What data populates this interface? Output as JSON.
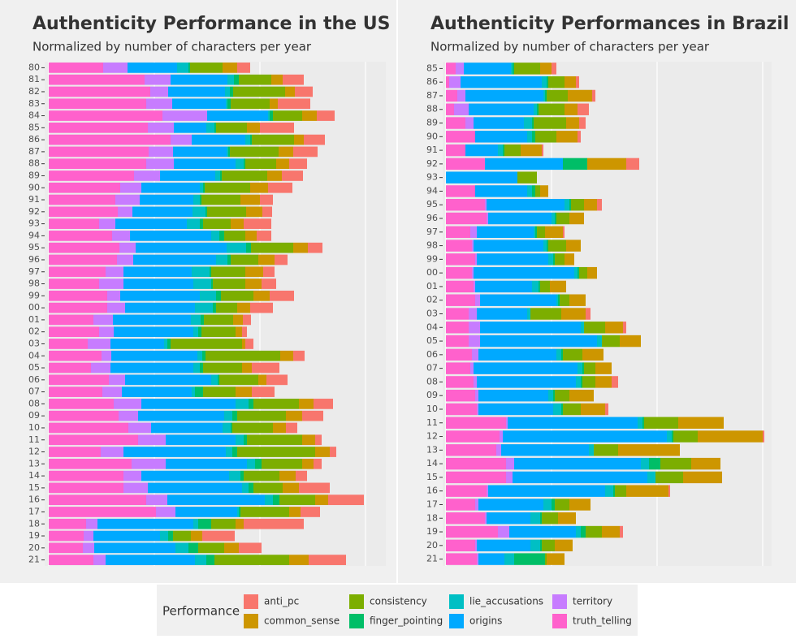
{
  "chart_data": [
    {
      "type": "bar",
      "orientation": "horizontal",
      "stacked": true,
      "title": "Authenticity Performance in the US",
      "subtitle": "Normalized by number of characters per year",
      "categories": [
        "80",
        "81",
        "82",
        "83",
        "84",
        "85",
        "86",
        "87",
        "88",
        "89",
        "90",
        "91",
        "92",
        "93",
        "94",
        "95",
        "96",
        "97",
        "98",
        "99",
        "00",
        "01",
        "02",
        "03",
        "04",
        "05",
        "06",
        "07",
        "08",
        "09",
        "10",
        "11",
        "12",
        "13",
        "14",
        "15",
        "16",
        "17",
        "18",
        "19",
        "20",
        "21"
      ],
      "xlim": [
        -5,
        415
      ],
      "xticks": [
        0,
        130,
        260,
        390
      ],
      "grid": true,
      "series": [
        {
          "name": "truth_telling",
          "color": "#FF61CC",
          "values": [
            67,
            118,
            125,
            120,
            140,
            122,
            150,
            123,
            120,
            105,
            88,
            82,
            85,
            62,
            78,
            87,
            84,
            70,
            62,
            72,
            72,
            55,
            62,
            48,
            65,
            52,
            74,
            66,
            80,
            86,
            98,
            110,
            64,
            102,
            92,
            92,
            120,
            132,
            46,
            43,
            42,
            55
          ]
        },
        {
          "name": "territory",
          "color": "#C77CFF",
          "values": [
            30,
            32,
            22,
            32,
            55,
            32,
            26,
            30,
            34,
            32,
            26,
            30,
            18,
            20,
            22,
            20,
            20,
            22,
            30,
            16,
            22,
            24,
            18,
            28,
            12,
            24,
            20,
            24,
            34,
            24,
            28,
            34,
            28,
            42,
            22,
            30,
            26,
            24,
            14,
            12,
            14,
            15
          ]
        },
        {
          "name": "origins",
          "color": "#00A9FF",
          "values": [
            61,
            70,
            70,
            66,
            75,
            40,
            66,
            66,
            76,
            68,
            72,
            66,
            74,
            88,
            100,
            112,
            102,
            84,
            86,
            98,
            86,
            96,
            98,
            66,
            106,
            102,
            106,
            86,
            116,
            106,
            88,
            86,
            126,
            100,
            108,
            116,
            120,
            76,
            118,
            82,
            100,
            110
          ]
        },
        {
          "name": "lie_accusations",
          "color": "#00BFC4",
          "values": [
            14,
            8,
            6,
            2,
            2,
            10,
            6,
            2,
            10,
            6,
            4,
            8,
            16,
            16,
            10,
            24,
            14,
            22,
            22,
            20,
            22,
            12,
            6,
            4,
            6,
            8,
            8,
            4,
            16,
            10,
            10,
            10,
            8,
            10,
            14,
            8,
            10,
            2,
            6,
            10,
            16,
            14
          ]
        },
        {
          "name": "finger_pointing",
          "color": "#00BE67",
          "values": [
            2,
            6,
            4,
            4,
            4,
            2,
            2,
            2,
            2,
            2,
            2,
            2,
            2,
            4,
            6,
            6,
            4,
            2,
            2,
            6,
            4,
            4,
            4,
            4,
            4,
            4,
            2,
            10,
            6,
            6,
            2,
            4,
            6,
            8,
            4,
            6,
            8,
            2,
            16,
            6,
            12,
            10
          ]
        },
        {
          "name": "consistency",
          "color": "#7CAE00",
          "values": [
            40,
            40,
            64,
            48,
            36,
            38,
            52,
            60,
            38,
            56,
            56,
            48,
            48,
            34,
            26,
            52,
            34,
            42,
            40,
            40,
            26,
            36,
            42,
            88,
            92,
            48,
            48,
            40,
            56,
            60,
            50,
            68,
            96,
            50,
            44,
            36,
            44,
            60,
            30,
            22,
            32,
            92
          ]
        },
        {
          "name": "common_sense",
          "color": "#CD9600",
          "values": [
            18,
            14,
            12,
            10,
            18,
            16,
            12,
            18,
            16,
            18,
            22,
            24,
            20,
            16,
            14,
            18,
            20,
            22,
            20,
            20,
            16,
            12,
            8,
            4,
            16,
            12,
            10,
            20,
            18,
            20,
            16,
            16,
            18,
            14,
            20,
            20,
            16,
            14,
            10,
            14,
            18,
            24
          ]
        },
        {
          "name": "anti_pc",
          "color": "#F8766D",
          "values": [
            16,
            26,
            22,
            40,
            22,
            42,
            26,
            30,
            22,
            26,
            30,
            16,
            12,
            34,
            18,
            18,
            16,
            14,
            18,
            30,
            28,
            10,
            6,
            10,
            14,
            34,
            26,
            28,
            24,
            26,
            14,
            8,
            8,
            10,
            14,
            38,
            44,
            24,
            74,
            40,
            28,
            46
          ]
        }
      ]
    },
    {
      "type": "bar",
      "orientation": "horizontal",
      "stacked": true,
      "title": "Authenticity Performances in Brazil",
      "subtitle": "Normalized by number of characters per year",
      "categories": [
        "85",
        "86",
        "87",
        "88",
        "89",
        "90",
        "91",
        "92",
        "93",
        "94",
        "95",
        "96",
        "97",
        "98",
        "99",
        "00",
        "01",
        "02",
        "03",
        "04",
        "05",
        "06",
        "07",
        "08",
        "09",
        "10",
        "11",
        "12",
        "13",
        "14",
        "15",
        "16",
        "17",
        "18",
        "19",
        "20",
        "21"
      ],
      "xlim": [
        -4,
        401
      ],
      "xticks": [
        0,
        130,
        260,
        390
      ],
      "grid": true,
      "series": [
        {
          "name": "truth_telling",
          "color": "#FF61CC",
          "values": [
            12,
            4,
            14,
            10,
            24,
            36,
            24,
            48,
            0,
            36,
            48,
            50,
            30,
            32,
            36,
            32,
            34,
            36,
            28,
            28,
            28,
            32,
            30,
            34,
            36,
            38,
            74,
            66,
            62,
            74,
            74,
            50,
            36,
            48,
            64,
            36,
            38
          ]
        },
        {
          "name": "territory",
          "color": "#C77CFF",
          "values": [
            10,
            14,
            10,
            18,
            10,
            0,
            0,
            0,
            0,
            0,
            2,
            2,
            8,
            2,
            2,
            2,
            2,
            6,
            10,
            14,
            14,
            8,
            4,
            4,
            4,
            2,
            2,
            4,
            6,
            10,
            8,
            2,
            4,
            2,
            14,
            2,
            2
          ]
        },
        {
          "name": "origins",
          "color": "#00A9FF",
          "values": [
            58,
            100,
            96,
            80,
            62,
            64,
            40,
            96,
            88,
            64,
            96,
            78,
            70,
            86,
            88,
            124,
            70,
            94,
            62,
            124,
            144,
            96,
            128,
            122,
            86,
            92,
            160,
            202,
            108,
            156,
            166,
            144,
            80,
            54,
            82,
            66,
            32
          ]
        },
        {
          "name": "lie_accusations",
          "color": "#00BFC4",
          "values": [
            2,
            6,
            2,
            4,
            10,
            6,
            6,
            0,
            0,
            6,
            6,
            4,
            2,
            4,
            6,
            4,
            8,
            2,
            4,
            4,
            6,
            6,
            6,
            6,
            6,
            10,
            6,
            6,
            6,
            10,
            10,
            10,
            10,
            12,
            6,
            12,
            12
          ]
        },
        {
          "name": "finger_pointing",
          "color": "#00BE67",
          "values": [
            2,
            2,
            2,
            2,
            2,
            4,
            2,
            30,
            0,
            4,
            2,
            2,
            2,
            2,
            2,
            2,
            2,
            2,
            0,
            0,
            0,
            2,
            2,
            2,
            2,
            2,
            2,
            2,
            0,
            14,
            0,
            2,
            4,
            2,
            6,
            2,
            38
          ]
        },
        {
          "name": "consistency",
          "color": "#7CAE00",
          "values": [
            32,
            20,
            26,
            32,
            40,
            26,
            20,
            0,
            24,
            6,
            16,
            16,
            10,
            22,
            12,
            10,
            12,
            12,
            38,
            26,
            22,
            24,
            14,
            16,
            18,
            22,
            42,
            30,
            30,
            38,
            34,
            14,
            18,
            20,
            20,
            16,
            2
          ]
        },
        {
          "name": "common_sense",
          "color": "#CD9600",
          "values": [
            14,
            14,
            30,
            16,
            16,
            26,
            26,
            48,
            0,
            10,
            16,
            18,
            22,
            18,
            12,
            12,
            20,
            20,
            30,
            22,
            26,
            26,
            20,
            20,
            30,
            30,
            56,
            80,
            76,
            36,
            48,
            52,
            26,
            22,
            22,
            22,
            22
          ]
        },
        {
          "name": "anti_pc",
          "color": "#F8766D",
          "values": [
            6,
            4,
            4,
            14,
            8,
            4,
            2,
            16,
            0,
            0,
            6,
            0,
            2,
            0,
            0,
            0,
            0,
            0,
            6,
            4,
            0,
            0,
            0,
            8,
            0,
            4,
            0,
            2,
            0,
            0,
            0,
            2,
            0,
            0,
            4,
            0,
            0
          ]
        }
      ]
    }
  ],
  "legend": {
    "title": "Performance",
    "position": "bottom"
  }
}
